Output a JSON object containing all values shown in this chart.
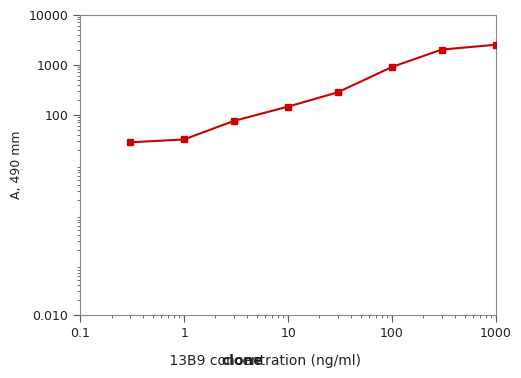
{
  "x": [
    0.3,
    1.0,
    3.0,
    10.0,
    30.0,
    100.0,
    300.0,
    1000.0
  ],
  "y": [
    28,
    32,
    75,
    145,
    280,
    900,
    2000,
    2500
  ],
  "line_color": "#cc0000",
  "marker": "s",
  "marker_size": 4,
  "ylabel": "A, 490 mm",
  "xlim": [
    0.1,
    1000
  ],
  "ylim": [
    0.01,
    10000
  ],
  "xticks": [
    0.1,
    1,
    10,
    100,
    1000
  ],
  "xtick_labels": [
    "0.1",
    "1",
    "10",
    "100",
    "1000"
  ],
  "yticks": [
    0.01,
    100,
    1000,
    10000
  ],
  "ytick_labels": [
    "0.010",
    "100",
    "1000",
    "10000"
  ],
  "background_color": "#ffffff",
  "spine_color": "#888888",
  "tick_color": "#555555",
  "label_color": "#222222",
  "ylabel_fontsize": 9,
  "xlabel_fontsize": 10,
  "tick_labelsize": 9
}
